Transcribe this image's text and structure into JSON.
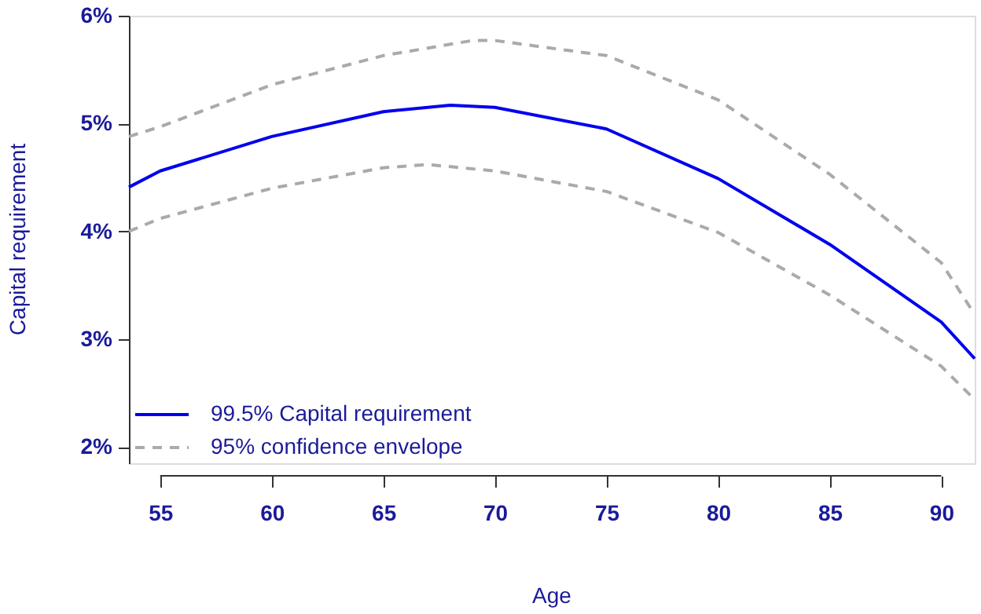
{
  "chart_data": {
    "type": "line",
    "xlabel": "Age",
    "ylabel": "Capital requirement",
    "xlim": [
      53.6,
      91.5
    ],
    "ylim": [
      1.85,
      6.0
    ],
    "xticks": [
      55,
      60,
      65,
      70,
      75,
      80,
      85,
      90
    ],
    "yticks": [
      {
        "value": 2,
        "label": "2%"
      },
      {
        "value": 3,
        "label": "3%"
      },
      {
        "value": 4,
        "label": "4%"
      },
      {
        "value": 5,
        "label": "5%"
      },
      {
        "value": 6,
        "label": "6%"
      }
    ],
    "grid": false,
    "legend": "bottom left",
    "marker": "none",
    "series": [
      {
        "name": "99.5% Capital requirement",
        "color": "#0000ee",
        "line_style": "solid",
        "x": [
          53.6,
          55,
          60,
          65,
          68,
          70,
          75,
          80,
          85,
          90,
          91.5
        ],
        "values": [
          4.41,
          4.56,
          4.88,
          5.11,
          5.17,
          5.15,
          4.95,
          4.49,
          3.88,
          3.16,
          2.82
        ]
      },
      {
        "name": "95% confidence envelope",
        "color": "#aaaaaa",
        "line_style": "dashed",
        "x": [
          53.6,
          55,
          60,
          65,
          69,
          70,
          75,
          80,
          85,
          90,
          91.5
        ],
        "values": [
          4.88,
          4.97,
          5.36,
          5.63,
          5.77,
          5.77,
          5.63,
          5.22,
          4.53,
          3.71,
          3.23
        ]
      },
      {
        "color": "#aaaaaa",
        "line_style": "dashed",
        "x": [
          53.6,
          55,
          60,
          65,
          67,
          70,
          75,
          80,
          85,
          90,
          91.5
        ],
        "values": [
          4.0,
          4.12,
          4.4,
          4.59,
          4.62,
          4.56,
          4.37,
          3.99,
          3.41,
          2.75,
          2.44
        ]
      }
    ]
  }
}
